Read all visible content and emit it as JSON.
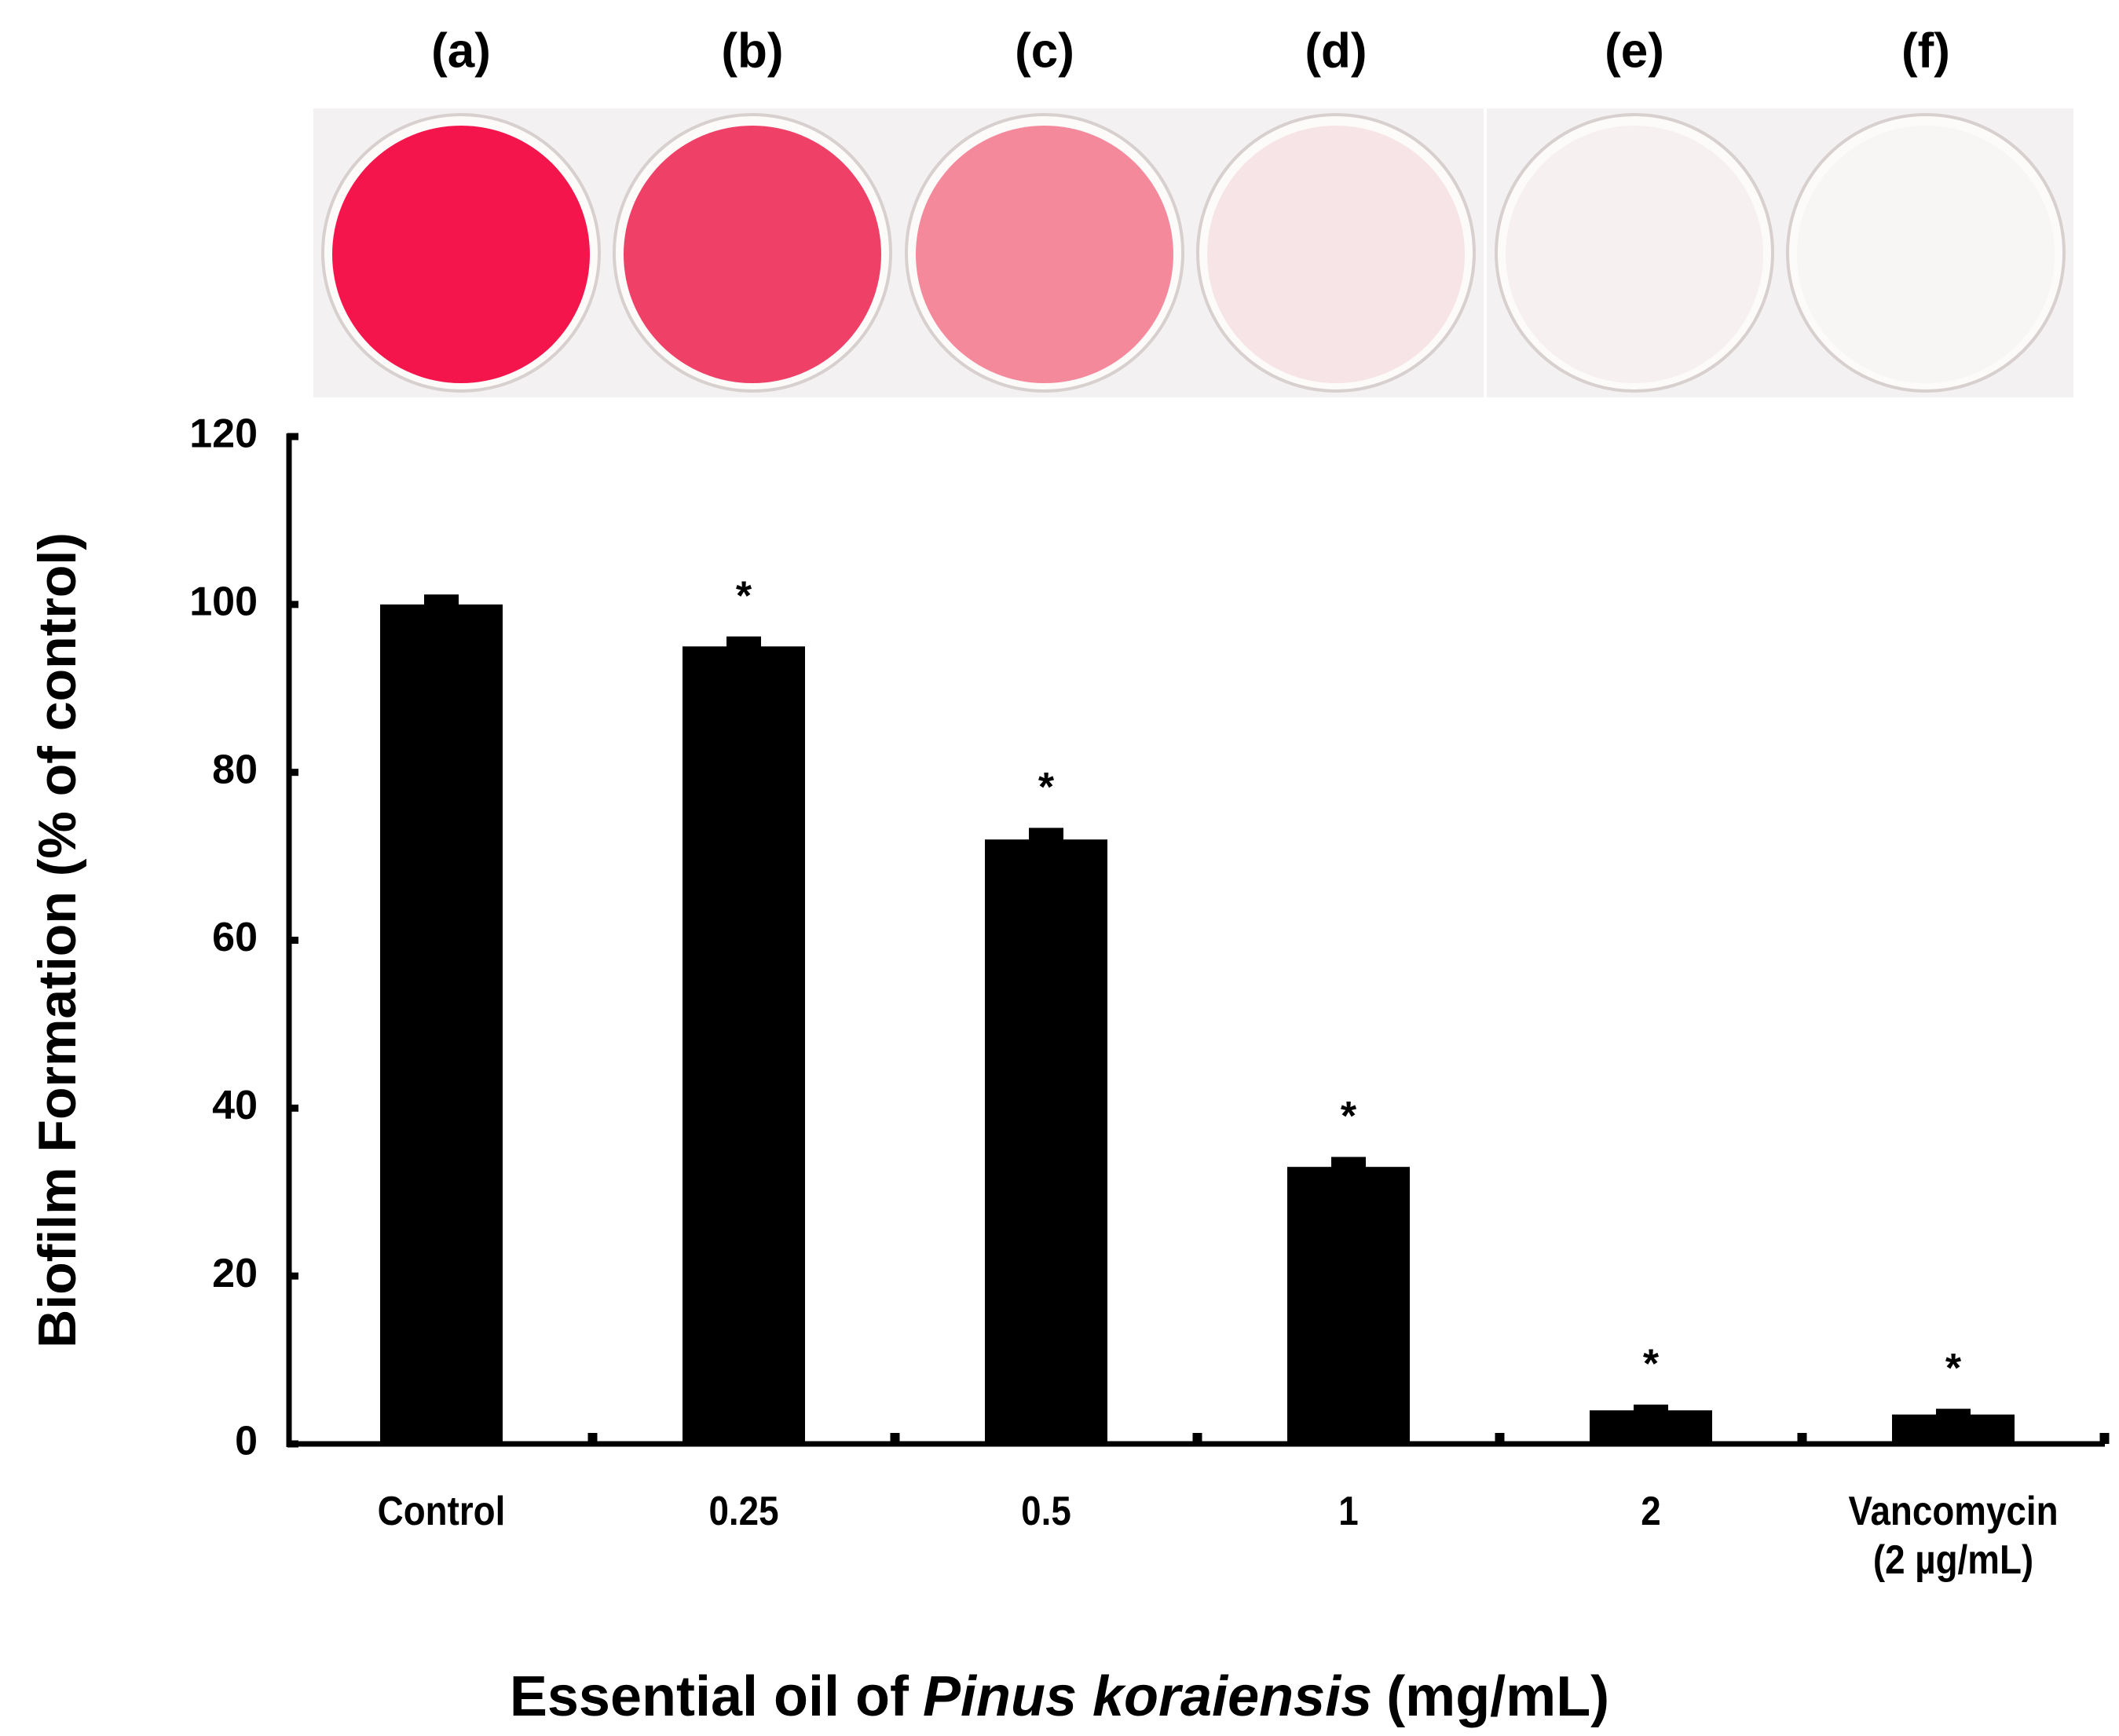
{
  "panel_labels": [
    "(a)",
    "(b)",
    "(c)",
    "(d)",
    "(e)",
    "(f)"
  ],
  "chart_data": {
    "type": "bar",
    "categories": [
      "Control",
      "0.25",
      "0.5",
      "1",
      "2",
      "Vancomycin\n(2 µg/mL)"
    ],
    "values": [
      100,
      95,
      72,
      33,
      4,
      3.5
    ],
    "errors": [
      1,
      1,
      1.2,
      1,
      0.5,
      0.5
    ],
    "annotations": [
      null,
      "*",
      "*",
      "*",
      "*",
      "*"
    ],
    "color": "#000000",
    "ylim": [
      0,
      120
    ],
    "yticks": [
      0,
      20,
      40,
      60,
      80,
      100,
      120
    ],
    "y_label": "Biofilm Formation (% of control)",
    "x_label": {
      "before": "Essential oil of",
      "italic": "Pinus koraiensis",
      "after": "(mg/mL)"
    },
    "grid": false
  }
}
